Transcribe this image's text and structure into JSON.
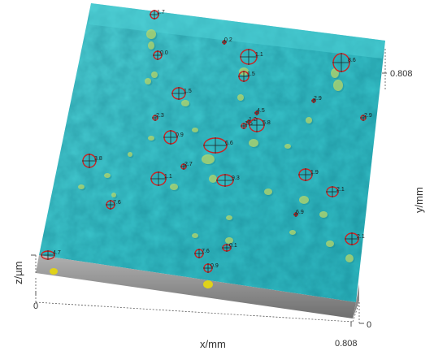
{
  "axes": {
    "x_label": "x/mm",
    "y_label": "y/mm",
    "z_label": "z/µm",
    "x_min": "0",
    "x_max": "0.808",
    "y_max": "0.808",
    "z_min": "0",
    "corner_y_zero": "0"
  },
  "colors": {
    "surface": "#39c5cc",
    "surface_dark": "#23a9b3",
    "side_wall": "#9b9b9b",
    "marker": "#cc2222",
    "blob": "#b9d86a"
  },
  "markers": [
    {
      "label": "1.7"
    },
    {
      "label": "0.2"
    },
    {
      "label": "0.0"
    },
    {
      "label": "1.1"
    },
    {
      "label": "8.6"
    },
    {
      "label": "1.5"
    },
    {
      "label": "2.9"
    },
    {
      "label": "2.9"
    },
    {
      "label": "2.3"
    },
    {
      "label": "1.5"
    },
    {
      "label": "4.5"
    },
    {
      "label": "1.5"
    },
    {
      "label": "1.2"
    },
    {
      "label": "5.8"
    },
    {
      "label": "0.9"
    },
    {
      "label": "6.6"
    },
    {
      "label": "3.8"
    },
    {
      "label": "2.7"
    },
    {
      "label": "1.1"
    },
    {
      "label": "9.3"
    },
    {
      "label": "1.9"
    },
    {
      "label": "2.1"
    },
    {
      "label": "7.6"
    },
    {
      "label": "6.9"
    },
    {
      "label": "2.1"
    },
    {
      "label": "4.7"
    },
    {
      "label": "7.6"
    },
    {
      "label": "0.1"
    },
    {
      "label": "0.9"
    }
  ]
}
